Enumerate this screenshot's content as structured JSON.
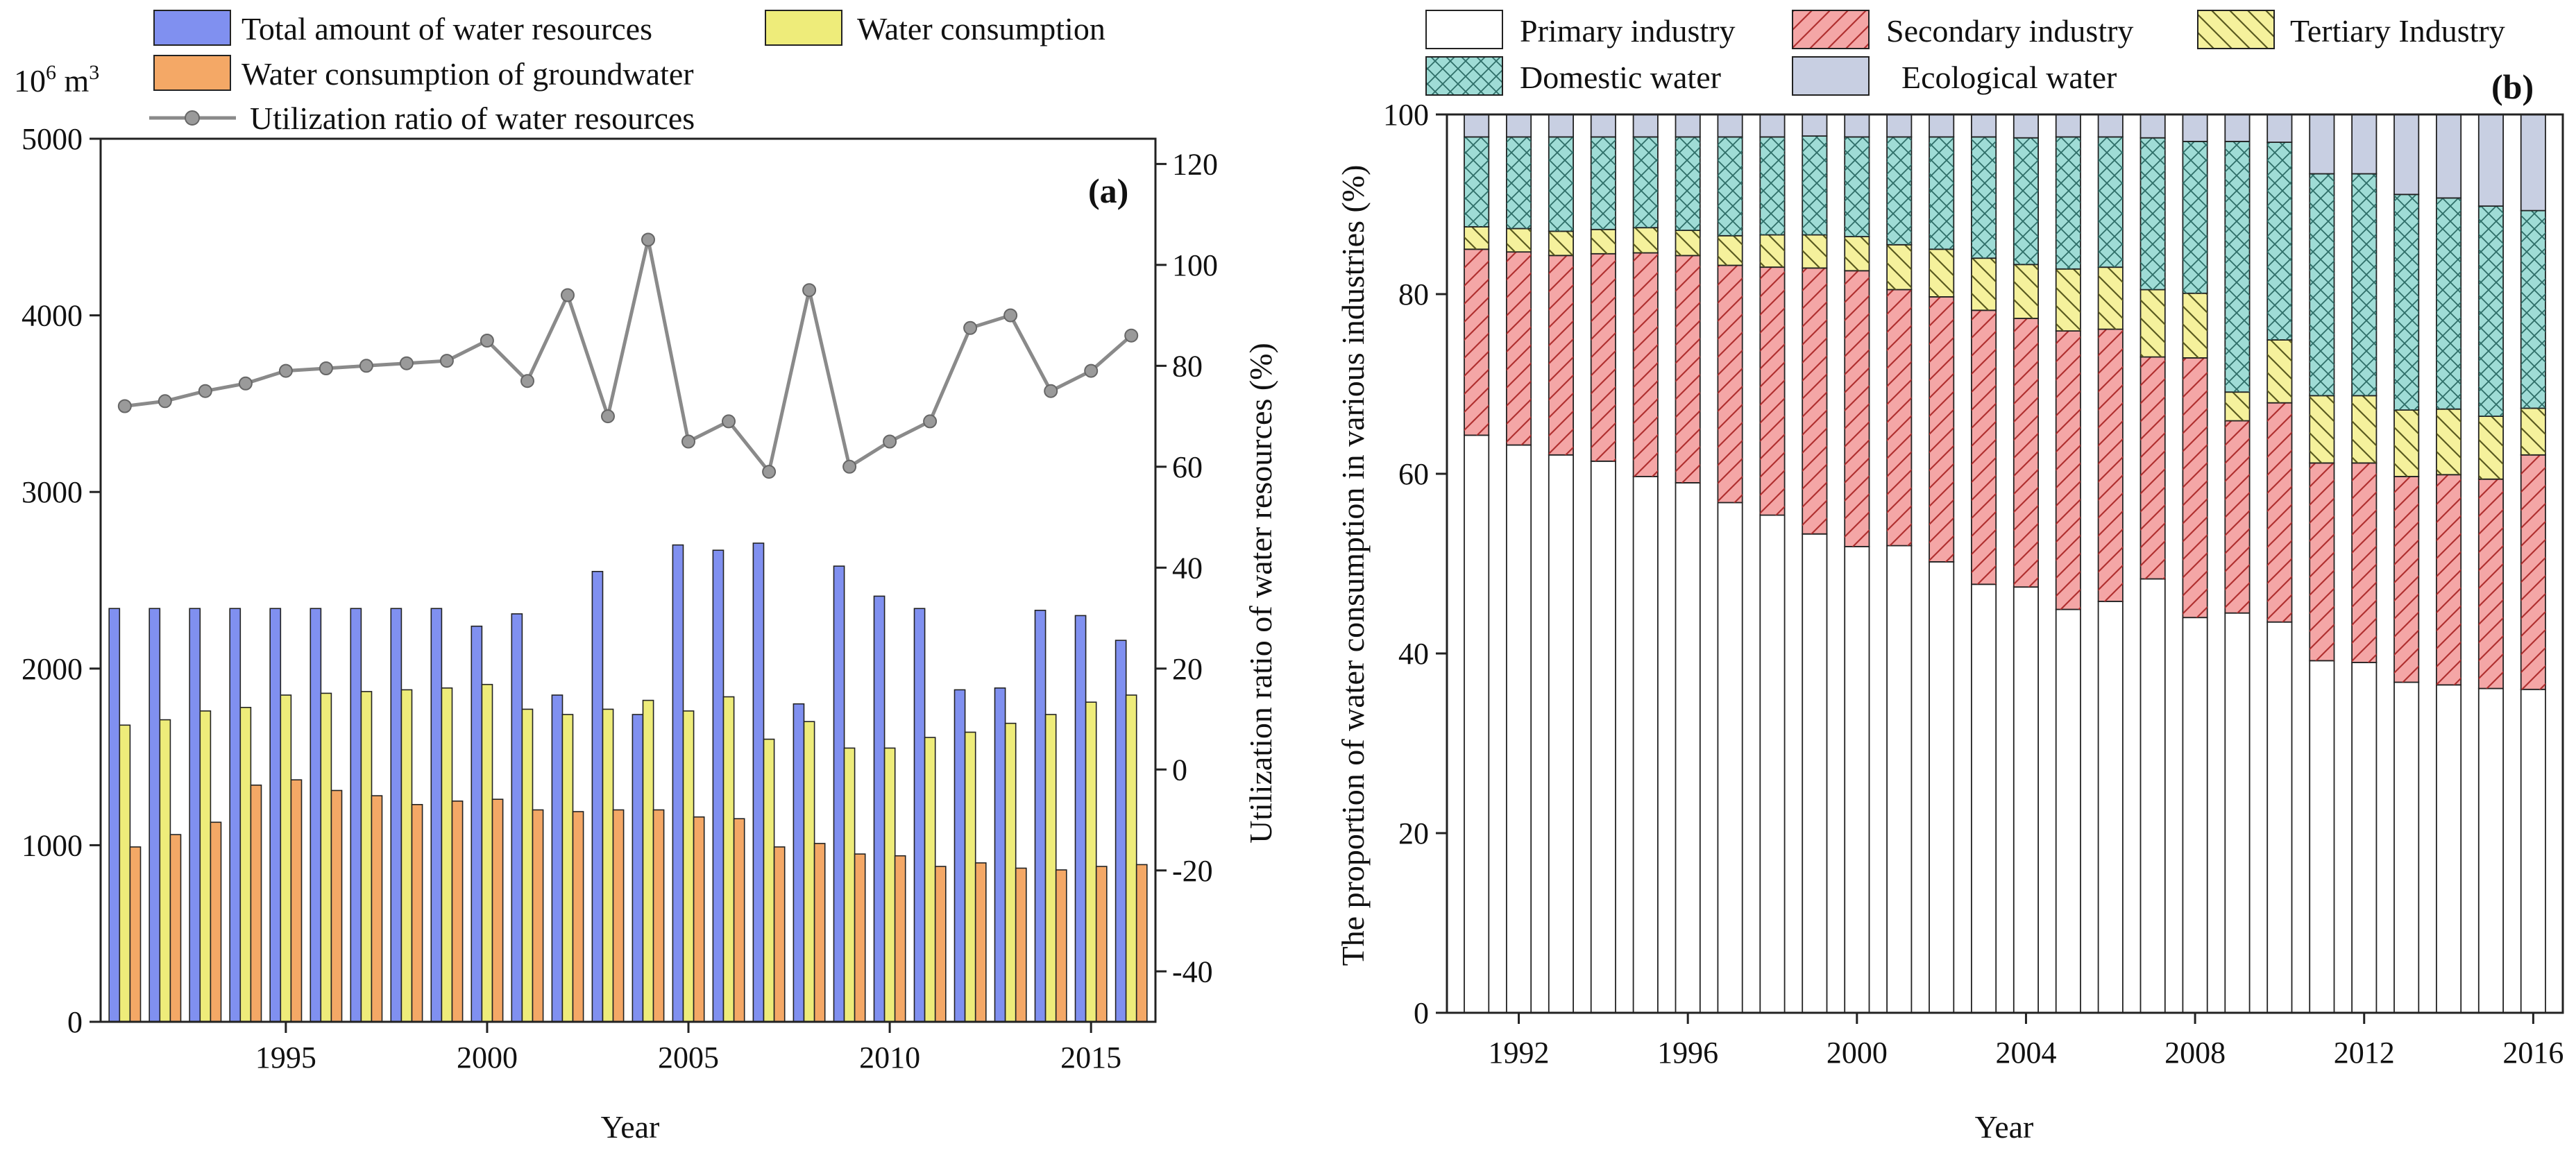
{
  "chart_data": [
    {
      "id": "a",
      "type": "bar",
      "panel_label": "(a)",
      "xlabel": "Year",
      "ylabel_left": "10⁶ m³",
      "unit_base": "10",
      "unit_exp": "6",
      "unit_rest": " m",
      "unit_sup": "3",
      "ylabel_right": "Utilization ratio of water resources (%)",
      "ylim_left": [
        0,
        5000
      ],
      "ylim_right": [
        -50,
        125
      ],
      "yticks_left": [
        "0",
        "1000",
        "2000",
        "3000",
        "4000",
        "5000"
      ],
      "yticks_left_values": [
        0,
        1000,
        2000,
        3000,
        4000,
        5000
      ],
      "yticks_right": [
        "-40",
        "-20",
        "0",
        "20",
        "40",
        "60",
        "80",
        "100",
        "120"
      ],
      "yticks_right_values": [
        -40,
        -20,
        0,
        20,
        40,
        60,
        80,
        100,
        120
      ],
      "xticks": [
        "1995",
        "2000",
        "2005",
        "2010",
        "2015"
      ],
      "xticks_values": [
        1995,
        2000,
        2005,
        2010,
        2015
      ],
      "xlim": [
        1990.4,
        2016.6
      ],
      "years": [
        1991,
        1992,
        1993,
        1994,
        1995,
        1996,
        1997,
        1998,
        1999,
        2000,
        2001,
        2002,
        2003,
        2004,
        2005,
        2006,
        2007,
        2008,
        2009,
        2010,
        2011,
        2012,
        2013,
        2014,
        2015,
        2016
      ],
      "series": [
        {
          "name": "Total amount of water resources",
          "kind": "bar",
          "color": "#8090f0",
          "values": [
            2340,
            2340,
            2340,
            2340,
            2340,
            2340,
            2340,
            2340,
            2340,
            2240,
            2310,
            1850,
            2550,
            1740,
            2700,
            2670,
            2710,
            1800,
            2580,
            2410,
            2340,
            1880,
            1890,
            2330,
            2300,
            2160
          ]
        },
        {
          "name": "Water consumption",
          "kind": "bar",
          "color": "#eeec7a",
          "values": [
            1680,
            1710,
            1760,
            1780,
            1850,
            1860,
            1870,
            1880,
            1890,
            1910,
            1770,
            1740,
            1770,
            1820,
            1760,
            1840,
            1600,
            1700,
            1550,
            1550,
            1610,
            1640,
            1690,
            1740,
            1810,
            1850
          ]
        },
        {
          "name": "Water consumption of groundwater",
          "kind": "bar",
          "color": "#f4a866",
          "values": [
            990,
            1060,
            1130,
            1340,
            1370,
            1310,
            1280,
            1230,
            1250,
            1260,
            1200,
            1190,
            1200,
            1200,
            1160,
            1150,
            990,
            1010,
            950,
            940,
            880,
            900,
            870,
            860,
            880,
            890
          ]
        },
        {
          "name": "Utilization ratio of water resources",
          "kind": "line",
          "color": "#8a8a8a",
          "axis": "right",
          "values": [
            72,
            73,
            75,
            76.5,
            79,
            79.5,
            80,
            80.5,
            81,
            85,
            77,
            94,
            70,
            105,
            65,
            69,
            59,
            95,
            60,
            65,
            69,
            87.5,
            90,
            75,
            79,
            86
          ]
        }
      ]
    },
    {
      "id": "b",
      "type": "stacked_bar",
      "panel_label": "(b)",
      "xlabel": "Year",
      "ylabel": "The proportion of water consumption in various industries (%)",
      "ylim": [
        0,
        100
      ],
      "yticks": [
        "0",
        "20",
        "40",
        "60",
        "80",
        "100"
      ],
      "yticks_values": [
        0,
        20,
        40,
        60,
        80,
        100
      ],
      "xticks": [
        "1992",
        "1996",
        "2000",
        "2004",
        "2008",
        "2012",
        "2016"
      ],
      "xticks_values": [
        1992,
        1996,
        2000,
        2004,
        2008,
        2012,
        2016
      ],
      "xlim": [
        1990.3,
        2016.7
      ],
      "years": [
        1991,
        1992,
        1993,
        1994,
        1995,
        1996,
        1997,
        1998,
        1999,
        2000,
        2001,
        2002,
        2003,
        2004,
        2005,
        2006,
        2007,
        2008,
        2009,
        2010,
        2011,
        2012,
        2013,
        2014,
        2015,
        2016
      ],
      "series": [
        {
          "name": "Primary industry",
          "color": "#ffffff",
          "pattern": "none",
          "values": [
            64.3,
            63.2,
            62.1,
            61.4,
            59.7,
            59.0,
            56.8,
            55.4,
            53.3,
            51.9,
            52.0,
            50.2,
            47.7,
            47.4,
            44.9,
            45.8,
            48.3,
            44.0,
            44.5,
            43.5,
            39.2,
            39.0,
            36.8,
            36.5,
            36.1,
            36.0
          ]
        },
        {
          "name": "Secondary industry",
          "color": "#f4a6a6",
          "pattern": "diag",
          "values": [
            20.7,
            21.5,
            22.2,
            23.1,
            24.9,
            25.3,
            26.4,
            27.6,
            29.6,
            30.7,
            28.5,
            29.5,
            30.5,
            29.9,
            31.0,
            30.3,
            24.7,
            28.9,
            21.4,
            24.4,
            22.0,
            22.2,
            22.9,
            23.4,
            23.3,
            26.1
          ]
        },
        {
          "name": "Tertiary Industry",
          "color": "#f5f19c",
          "pattern": "diag-rev",
          "values": [
            2.5,
            2.6,
            2.7,
            2.7,
            2.8,
            2.8,
            3.3,
            3.6,
            3.7,
            3.8,
            5.0,
            5.3,
            5.8,
            6.0,
            6.9,
            6.9,
            7.5,
            7.2,
            3.2,
            7.0,
            7.5,
            7.5,
            7.4,
            7.3,
            7.0,
            5.2
          ]
        },
        {
          "name": "Domestic water",
          "color": "#9fdcd6",
          "pattern": "cross",
          "values": [
            10.0,
            10.2,
            10.5,
            10.3,
            10.1,
            10.4,
            11.0,
            10.9,
            11.0,
            11.1,
            12.0,
            12.5,
            13.5,
            14.1,
            14.7,
            14.5,
            16.9,
            16.9,
            27.9,
            22.0,
            24.7,
            24.7,
            24.0,
            23.5,
            23.4,
            22.0
          ]
        },
        {
          "name": "Ecological water",
          "color": "#c8cfe2",
          "pattern": "none",
          "values": [
            2.5,
            2.5,
            2.5,
            2.5,
            2.5,
            2.5,
            2.5,
            2.5,
            2.4,
            2.5,
            2.5,
            2.5,
            2.5,
            2.6,
            2.5,
            2.5,
            2.6,
            3.0,
            3.0,
            3.1,
            6.6,
            6.6,
            8.9,
            9.3,
            10.2,
            10.7
          ]
        }
      ]
    }
  ]
}
